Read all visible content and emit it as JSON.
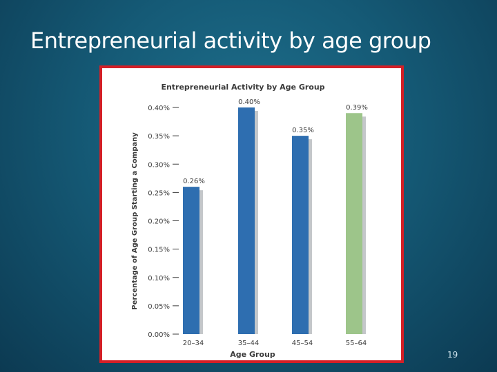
{
  "slide": {
    "title": "Entrepreneurial activity by age group",
    "page_number": "19"
  },
  "chart_data": {
    "type": "bar",
    "title": "Entrepreneurial Activity by Age Group",
    "xlabel": "Age Group",
    "ylabel": "Percentage of Age Group Starting a Company",
    "categories": [
      "20–34",
      "35–44",
      "45–54",
      "55–64"
    ],
    "values": [
      0.26,
      0.4,
      0.35,
      0.39
    ],
    "data_labels": [
      "0.26%",
      "0.40%",
      "0.35%",
      "0.39%"
    ],
    "y_ticks": [
      0,
      0.05,
      0.1,
      0.15,
      0.2,
      0.25,
      0.3,
      0.35,
      0.4
    ],
    "y_tick_labels": [
      "0.00%",
      "0.05%",
      "0.10%",
      "0.15%",
      "0.20%",
      "0.25%",
      "0.30%",
      "0.35%",
      "0.40%"
    ],
    "ylim": [
      0,
      0.4
    ],
    "grid": false,
    "colors": {
      "bar": "#2e6eb0",
      "highlight_bar": "#9dc58a",
      "shadow": "#c4c7ca",
      "frame_border": "#d41f26"
    },
    "highlight_index": 3
  }
}
